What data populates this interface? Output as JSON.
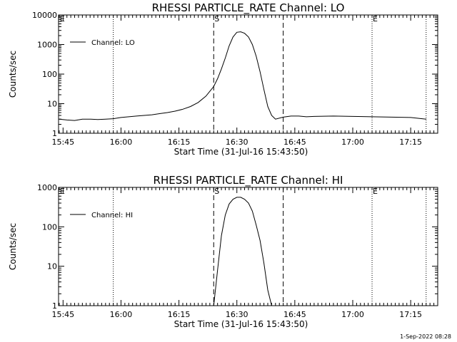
{
  "footer": "1-Sep-2022 08:28",
  "chart_data": [
    {
      "type": "line",
      "title": "RHESSI PARTICLE_RATE Channel: LO",
      "xlabel": "Start Time (31-Jul-16 15:43:50)",
      "ylabel": "Counts/sec",
      "yscale": "log",
      "ylim": [
        1,
        10000
      ],
      "xlim": [
        "15:43:50",
        "17:22:00"
      ],
      "x_ticks": [
        "15:45",
        "16:00",
        "16:15",
        "16:30",
        "16:45",
        "17:00",
        "17:15"
      ],
      "y_ticks": [
        "1",
        "10",
        "100",
        "1000",
        "10000"
      ],
      "legend": {
        "position": "top-left",
        "entries": [
          "Channel: LO"
        ]
      },
      "markers": [
        {
          "label": "E",
          "time": "15:44",
          "style": "none"
        },
        {
          "label": "",
          "time": "15:58",
          "style": "dotted"
        },
        {
          "label": "S",
          "time": "16:24",
          "style": "dashed"
        },
        {
          "label": "",
          "time": "16:42",
          "style": "dashed"
        },
        {
          "label": "E",
          "time": "17:05",
          "style": "dotted"
        },
        {
          "label": "",
          "time": "17:19",
          "style": "dotted"
        }
      ],
      "series": [
        {
          "name": "Channel: LO",
          "x": [
            "15:44",
            "15:46",
            "15:48",
            "15:50",
            "15:52",
            "15:54",
            "15:56",
            "15:58",
            "16:00",
            "16:02",
            "16:04",
            "16:06",
            "16:08",
            "16:10",
            "16:12",
            "16:14",
            "16:16",
            "16:18",
            "16:20",
            "16:22",
            "16:24",
            "16:25",
            "16:26",
            "16:27",
            "16:28",
            "16:29",
            "16:30",
            "16:31",
            "16:32",
            "16:33",
            "16:34",
            "16:35",
            "16:36",
            "16:37",
            "16:38",
            "16:39",
            "16:40",
            "16:42",
            "16:44",
            "16:46",
            "16:48",
            "16:50",
            "16:55",
            "17:00",
            "17:05",
            "17:10",
            "17:15",
            "17:19"
          ],
          "y": [
            3,
            2.8,
            2.7,
            3,
            3,
            2.9,
            3,
            3.1,
            3.4,
            3.6,
            3.8,
            4,
            4.2,
            4.6,
            5,
            5.6,
            6.5,
            8,
            11,
            18,
            38,
            70,
            150,
            350,
            900,
            1800,
            2600,
            2700,
            2400,
            1800,
            1000,
            400,
            120,
            30,
            8,
            4,
            3,
            3.5,
            3.8,
            3.8,
            3.6,
            3.7,
            3.8,
            3.7,
            3.6,
            3.5,
            3.4,
            3
          ]
        }
      ]
    },
    {
      "type": "line",
      "title": "RHESSI PARTICLE_RATE Channel: HI",
      "xlabel": "Start Time (31-Jul-16 15:43:50)",
      "ylabel": "Counts/sec",
      "yscale": "log",
      "ylim": [
        1,
        1000
      ],
      "xlim": [
        "15:43:50",
        "17:22:00"
      ],
      "x_ticks": [
        "15:45",
        "16:00",
        "16:15",
        "16:30",
        "16:45",
        "17:00",
        "17:15"
      ],
      "y_ticks": [
        "1",
        "10",
        "100",
        "1000"
      ],
      "legend": {
        "position": "top-left",
        "entries": [
          "Channel: HI"
        ]
      },
      "markers": [
        {
          "label": "E",
          "time": "15:44",
          "style": "none"
        },
        {
          "label": "",
          "time": "15:58",
          "style": "dotted"
        },
        {
          "label": "S",
          "time": "16:24",
          "style": "dashed"
        },
        {
          "label": "",
          "time": "16:42",
          "style": "dashed"
        },
        {
          "label": "E",
          "time": "17:05",
          "style": "dotted"
        },
        {
          "label": "",
          "time": "17:19",
          "style": "dotted"
        }
      ],
      "series": [
        {
          "name": "Channel: HI",
          "x": [
            "16:24",
            "16:25",
            "16:26",
            "16:27",
            "16:28",
            "16:29",
            "16:30",
            "16:31",
            "16:32",
            "16:33",
            "16:34",
            "16:35",
            "16:36",
            "16:37",
            "16:38",
            "16:39"
          ],
          "y": [
            1,
            8,
            60,
            200,
            380,
            500,
            560,
            560,
            500,
            400,
            250,
            110,
            45,
            12,
            2.5,
            1
          ]
        }
      ]
    }
  ]
}
